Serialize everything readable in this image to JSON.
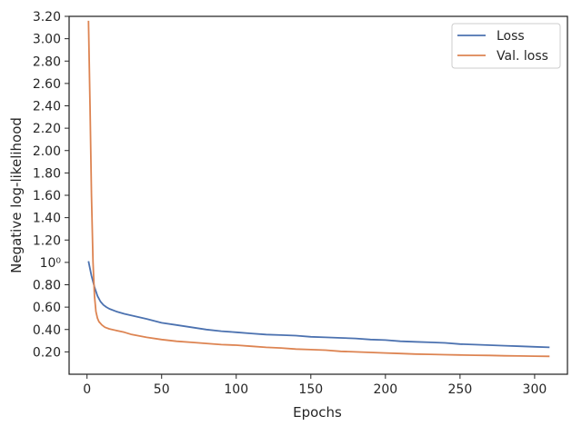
{
  "chart_data": {
    "type": "line",
    "title": "",
    "xlabel": "Epochs",
    "ylabel": "Negative log-likelihood",
    "xlim": [
      -12,
      322
    ],
    "ylim": [
      0.0,
      3.2
    ],
    "grid": false,
    "legend_position": "top-right",
    "x_ticks": [
      {
        "value": 0,
        "label": "0"
      },
      {
        "value": 50,
        "label": "50"
      },
      {
        "value": 100,
        "label": "100"
      },
      {
        "value": 150,
        "label": "150"
      },
      {
        "value": 200,
        "label": "200"
      },
      {
        "value": 250,
        "label": "250"
      },
      {
        "value": 300,
        "label": "300"
      }
    ],
    "y_ticks": [
      {
        "value": 0.2,
        "label": "0.20"
      },
      {
        "value": 0.4,
        "label": "0.40"
      },
      {
        "value": 0.6,
        "label": "0.60"
      },
      {
        "value": 0.8,
        "label": "0.80"
      },
      {
        "value": 1.0,
        "label": "10⁰"
      },
      {
        "value": 1.2,
        "label": "1.20"
      },
      {
        "value": 1.4,
        "label": "1.40"
      },
      {
        "value": 1.6,
        "label": "1.60"
      },
      {
        "value": 1.8,
        "label": "1.80"
      },
      {
        "value": 2.0,
        "label": "2.00"
      },
      {
        "value": 2.2,
        "label": "2.20"
      },
      {
        "value": 2.4,
        "label": "2.40"
      },
      {
        "value": 2.6,
        "label": "2.60"
      },
      {
        "value": 2.8,
        "label": "2.80"
      },
      {
        "value": 3.0,
        "label": "3.00"
      },
      {
        "value": 3.2,
        "label": "3.20"
      }
    ],
    "series": [
      {
        "name": "Loss",
        "color": "#4c72b0",
        "points": [
          [
            1,
            1.01
          ],
          [
            3,
            0.88
          ],
          [
            5,
            0.78
          ],
          [
            7,
            0.7
          ],
          [
            9,
            0.65
          ],
          [
            11,
            0.62
          ],
          [
            13,
            0.6
          ],
          [
            15,
            0.585
          ],
          [
            20,
            0.56
          ],
          [
            25,
            0.54
          ],
          [
            30,
            0.525
          ],
          [
            40,
            0.495
          ],
          [
            50,
            0.46
          ],
          [
            60,
            0.44
          ],
          [
            70,
            0.42
          ],
          [
            80,
            0.4
          ],
          [
            90,
            0.385
          ],
          [
            100,
            0.375
          ],
          [
            110,
            0.365
          ],
          [
            120,
            0.355
          ],
          [
            130,
            0.35
          ],
          [
            140,
            0.345
          ],
          [
            150,
            0.335
          ],
          [
            160,
            0.33
          ],
          [
            170,
            0.325
          ],
          [
            180,
            0.32
          ],
          [
            190,
            0.31
          ],
          [
            200,
            0.305
          ],
          [
            210,
            0.295
          ],
          [
            220,
            0.29
          ],
          [
            230,
            0.285
          ],
          [
            240,
            0.28
          ],
          [
            250,
            0.27
          ],
          [
            260,
            0.265
          ],
          [
            270,
            0.26
          ],
          [
            280,
            0.255
          ],
          [
            290,
            0.25
          ],
          [
            300,
            0.245
          ],
          [
            310,
            0.24
          ]
        ]
      },
      {
        "name": "Val. loss",
        "color": "#dd8452",
        "points": [
          [
            1,
            3.16
          ],
          [
            2,
            2.4
          ],
          [
            3,
            1.6
          ],
          [
            4,
            1.0
          ],
          [
            5,
            0.7
          ],
          [
            6,
            0.56
          ],
          [
            7,
            0.5
          ],
          [
            8,
            0.47
          ],
          [
            10,
            0.44
          ],
          [
            12,
            0.42
          ],
          [
            15,
            0.405
          ],
          [
            20,
            0.39
          ],
          [
            25,
            0.375
          ],
          [
            30,
            0.355
          ],
          [
            40,
            0.33
          ],
          [
            50,
            0.31
          ],
          [
            60,
            0.295
          ],
          [
            70,
            0.285
          ],
          [
            80,
            0.275
          ],
          [
            90,
            0.265
          ],
          [
            100,
            0.26
          ],
          [
            110,
            0.25
          ],
          [
            120,
            0.24
          ],
          [
            130,
            0.235
          ],
          [
            140,
            0.225
          ],
          [
            150,
            0.22
          ],
          [
            160,
            0.215
          ],
          [
            170,
            0.205
          ],
          [
            180,
            0.2
          ],
          [
            190,
            0.195
          ],
          [
            200,
            0.19
          ],
          [
            210,
            0.185
          ],
          [
            220,
            0.18
          ],
          [
            230,
            0.178
          ],
          [
            240,
            0.175
          ],
          [
            250,
            0.172
          ],
          [
            260,
            0.17
          ],
          [
            270,
            0.168
          ],
          [
            280,
            0.165
          ],
          [
            290,
            0.163
          ],
          [
            300,
            0.162
          ],
          [
            310,
            0.16
          ]
        ]
      }
    ]
  }
}
